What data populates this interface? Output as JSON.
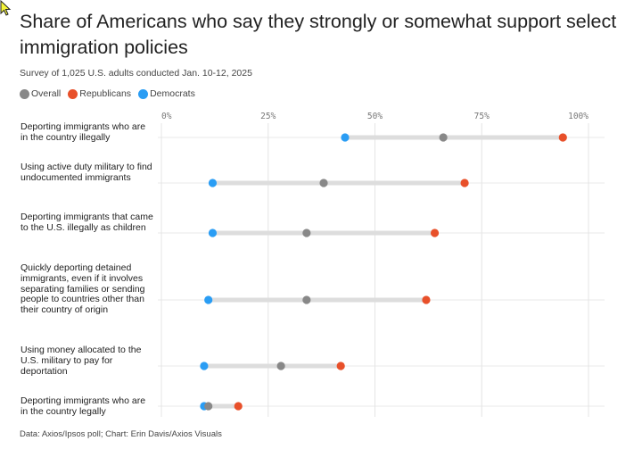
{
  "title": "Share of Americans who say they strongly or somewhat support select immigration policies",
  "subtitle": "Survey of 1,025 U.S. adults conducted Jan. 10-12, 2025",
  "legend": [
    {
      "label": "Overall",
      "color": "#888888"
    },
    {
      "label": "Republicans",
      "color": "#e8502a"
    },
    {
      "label": "Democrats",
      "color": "#2a9df4"
    }
  ],
  "footer": "Data: Axios/Ipsos poll; Chart: Erin Davis/Axios Visuals",
  "chart_data": {
    "type": "dot-range",
    "title": "Share of Americans who say they strongly or somewhat support select immigration policies",
    "xlim": [
      0,
      100
    ],
    "x_ticks": [
      0,
      25,
      50,
      75,
      100
    ],
    "x_tick_labels": [
      "0%",
      "25%",
      "50%",
      "75%",
      "100%"
    ],
    "grid": true,
    "series": [
      {
        "name": "Overall",
        "color": "#888888",
        "values": [
          66,
          38,
          34,
          34,
          28,
          11
        ]
      },
      {
        "name": "Republicans",
        "color": "#e8502a",
        "values": [
          94,
          71,
          64,
          62,
          42,
          18
        ]
      },
      {
        "name": "Democrats",
        "color": "#2a9df4",
        "values": [
          43,
          12,
          12,
          11,
          10,
          10
        ]
      }
    ],
    "categories": [
      "Deporting immigrants who are in the country illegally",
      "Using active duty military to find undocumented immigrants",
      "Deporting immigrants that came to the U.S. illegally as children",
      "Quickly deporting detained immigrants, even if it involves separating families or sending people to countries other than their country of origin",
      "Using money allocated to the U.S. military to pay for deportation",
      "Deporting immigrants who are in the country legally"
    ]
  }
}
